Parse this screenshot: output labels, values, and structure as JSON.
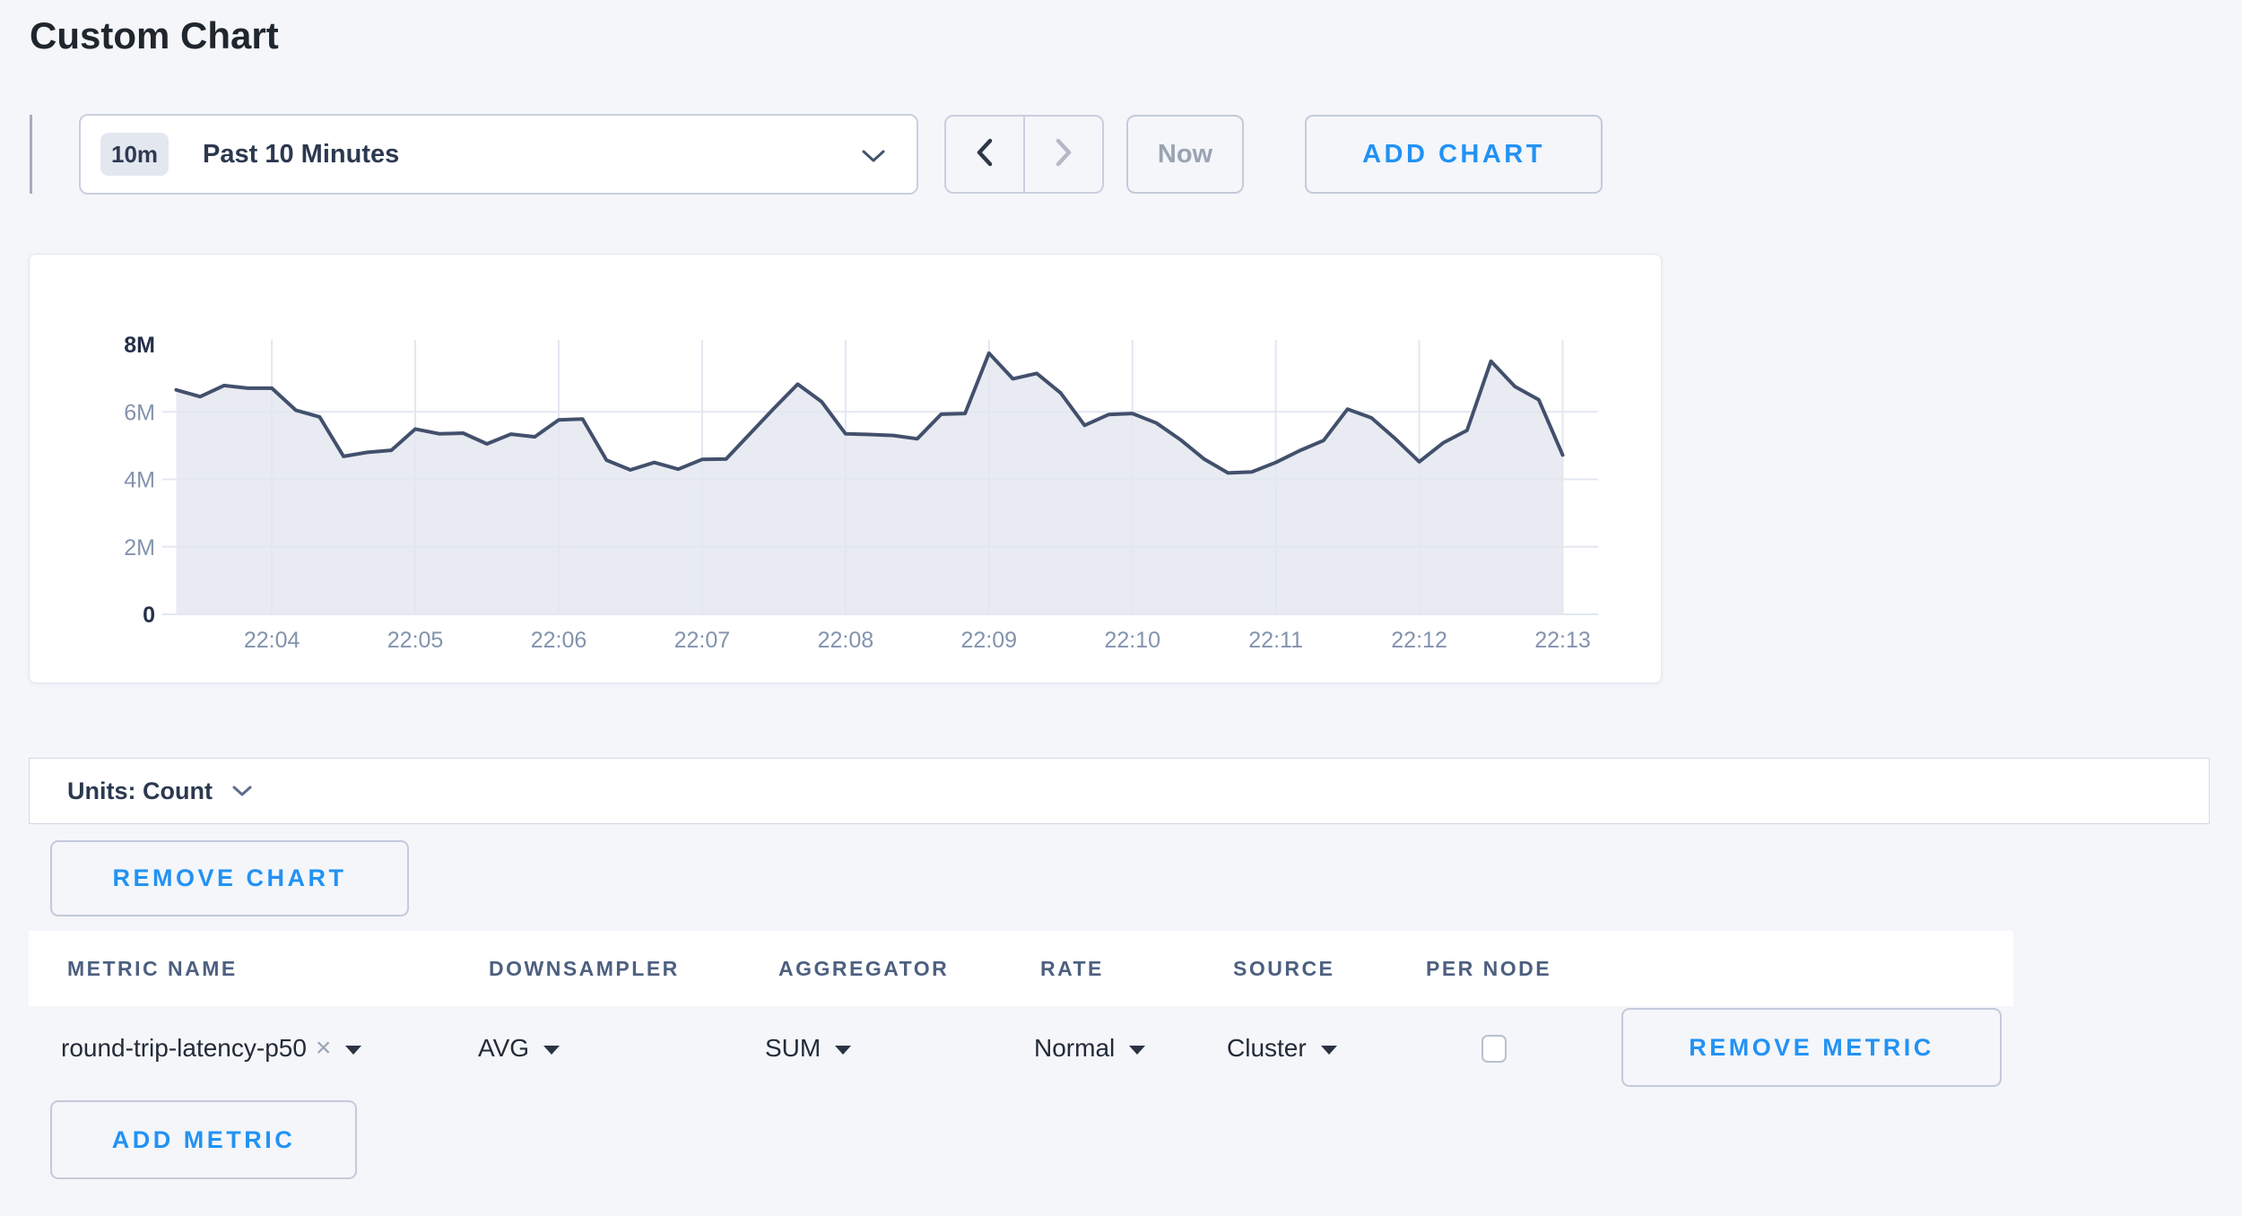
{
  "page": {
    "title": "Custom Chart",
    "background": "#f4f6fa",
    "accent_blue": "#2292f4"
  },
  "toolbar": {
    "time_selector": {
      "badge": "10m",
      "label": "Past 10 Minutes"
    },
    "now_button": "Now",
    "add_chart_button": "ADD CHART"
  },
  "chart_data": {
    "type": "area",
    "title": "",
    "x_start": "22:03:20",
    "x_interval_seconds": 10,
    "x_tick_labels": [
      "22:04",
      "22:05",
      "22:06",
      "22:07",
      "22:08",
      "22:09",
      "22:10",
      "22:11",
      "22:12",
      "22:13"
    ],
    "y_tick_labels": [
      "0",
      "2M",
      "4M",
      "6M",
      "8M"
    ],
    "ylim_millions": [
      0,
      8
    ],
    "grid": true,
    "legend": "none",
    "line_color": "#42506c",
    "fill_color": "#e9ebf2",
    "series": [
      {
        "name": "round-trip-latency-p50",
        "values_millions": [
          6.65,
          6.45,
          6.78,
          6.7,
          6.7,
          6.05,
          5.85,
          4.68,
          4.8,
          4.86,
          5.49,
          5.35,
          5.37,
          5.05,
          5.34,
          5.26,
          5.76,
          5.79,
          4.57,
          4.28,
          4.5,
          4.3,
          4.59,
          4.6,
          5.35,
          6.1,
          6.82,
          6.3,
          5.35,
          5.33,
          5.3,
          5.2,
          5.93,
          5.95,
          7.74,
          6.98,
          7.14,
          6.56,
          5.6,
          5.92,
          5.95,
          5.67,
          5.18,
          4.6,
          4.19,
          4.22,
          4.5,
          4.85,
          5.15,
          6.08,
          5.82,
          5.2,
          4.52,
          5.08,
          5.45,
          7.5,
          6.75,
          6.36,
          4.72
        ]
      }
    ]
  },
  "units_bar": {
    "label": "Units: Count"
  },
  "chart_actions": {
    "remove_chart_button": "REMOVE CHART"
  },
  "metrics_table": {
    "columns": [
      "METRIC NAME",
      "DOWNSAMPLER",
      "AGGREGATOR",
      "RATE",
      "SOURCE",
      "PER NODE"
    ],
    "rows": [
      {
        "metric_name": "round-trip-latency-p50",
        "remove_tag_icon": "×",
        "downsampler": "AVG",
        "aggregator": "SUM",
        "rate": "Normal",
        "source": "Cluster",
        "per_node_checked": false,
        "remove_metric_button": "REMOVE METRIC"
      }
    ],
    "add_metric_button": "ADD METRIC"
  }
}
